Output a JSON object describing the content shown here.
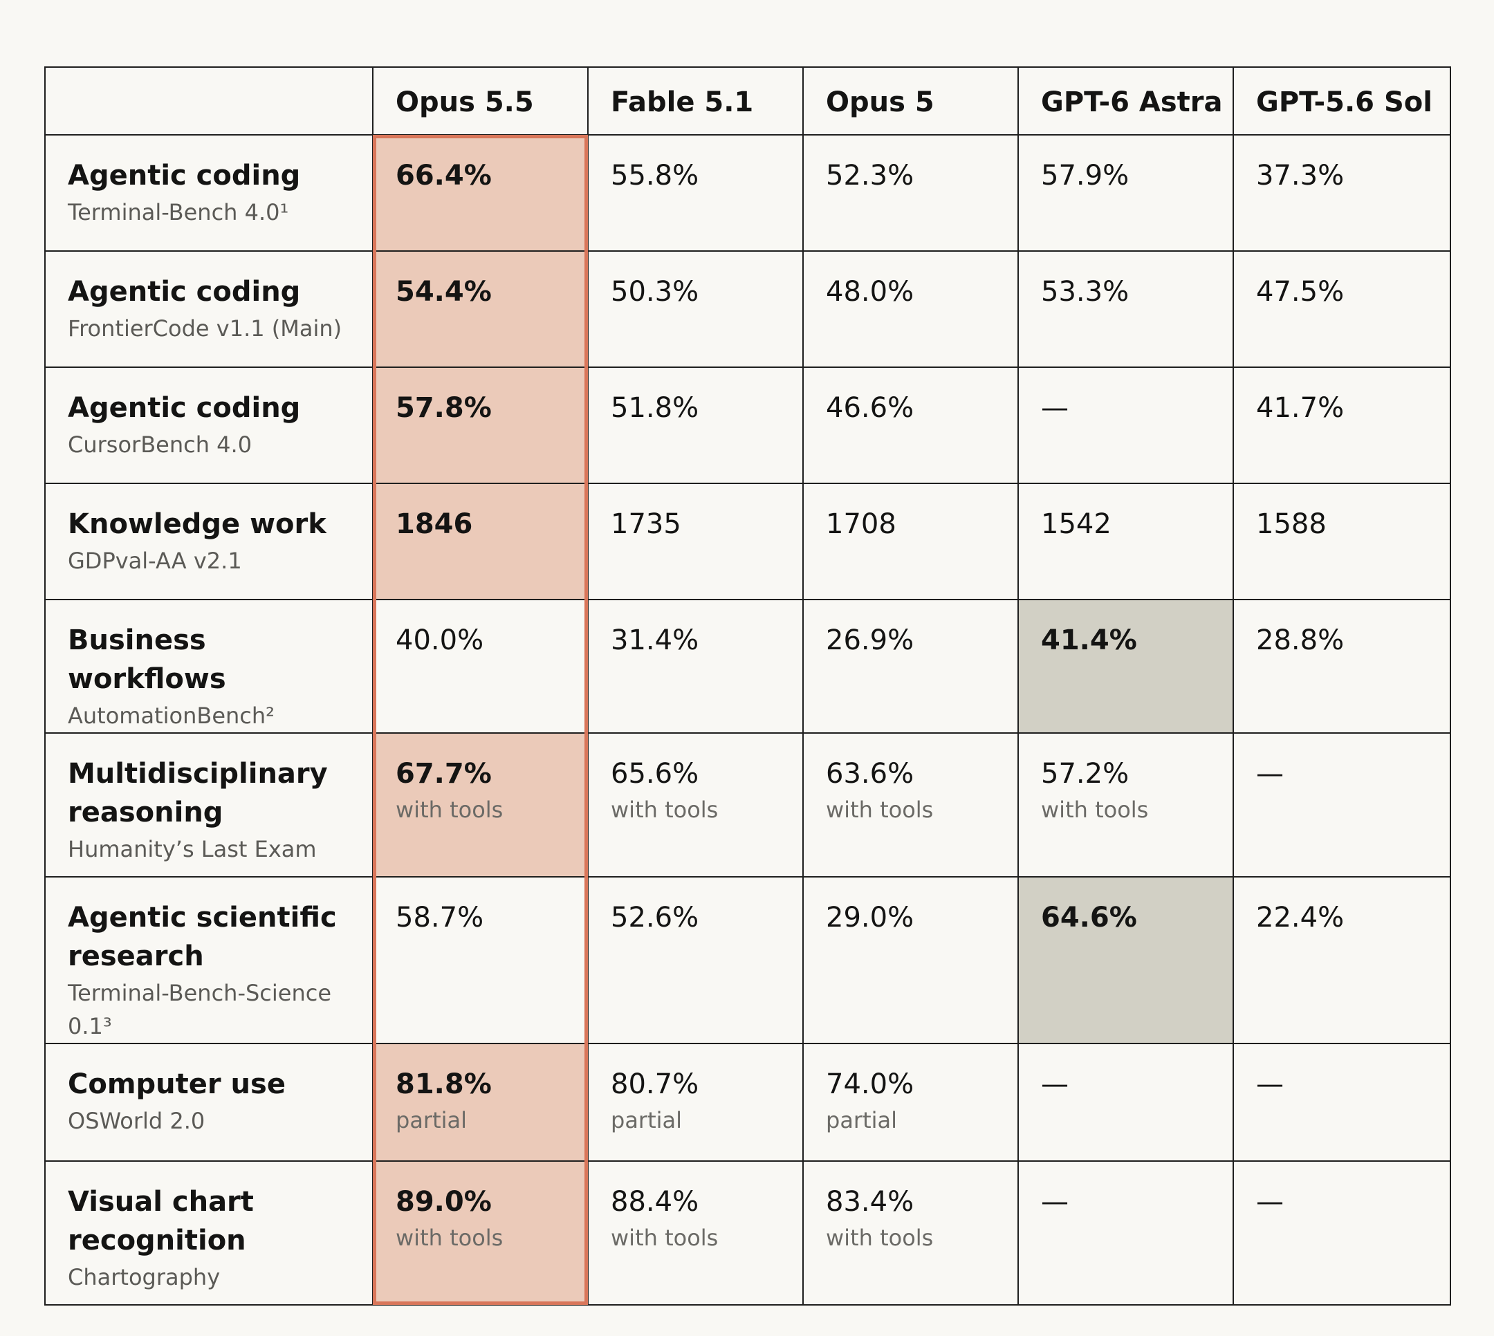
{
  "chart_data": {
    "type": "table",
    "columns": [
      "",
      "Opus 5.5",
      "Fable 5.1",
      "Opus 5",
      "GPT-6 Astra",
      "GPT-5.6 Sol"
    ],
    "accent_colors": {
      "highlight_column_border": "#d9765a",
      "highlight_cell_primary": "#ebcab9",
      "highlight_cell_other": "#d2d0c5"
    },
    "highlighted_column": "Opus 5.5",
    "rows": [
      {
        "category": "Agentic coding",
        "benchmark": "Terminal-Bench 4.0¹",
        "best": 0,
        "cells": [
          {
            "value": "66.4%"
          },
          {
            "value": "55.8%"
          },
          {
            "value": "52.3%"
          },
          {
            "value": "57.9%"
          },
          {
            "value": "37.3%"
          }
        ]
      },
      {
        "category": "Agentic coding",
        "benchmark": "FrontierCode v1.1 (Main)",
        "best": 0,
        "cells": [
          {
            "value": "54.4%"
          },
          {
            "value": "50.3%"
          },
          {
            "value": "48.0%"
          },
          {
            "value": "53.3%"
          },
          {
            "value": "47.5%"
          }
        ]
      },
      {
        "category": "Agentic coding",
        "benchmark": "CursorBench 4.0",
        "best": 0,
        "cells": [
          {
            "value": "57.8%"
          },
          {
            "value": "51.8%"
          },
          {
            "value": "46.6%"
          },
          {
            "value": "—"
          },
          {
            "value": "41.7%"
          }
        ]
      },
      {
        "category": "Knowledge work",
        "benchmark": "GDPval-AA v2.1",
        "best": 0,
        "cells": [
          {
            "value": "1846"
          },
          {
            "value": "1735"
          },
          {
            "value": "1708"
          },
          {
            "value": "1542"
          },
          {
            "value": "1588"
          }
        ]
      },
      {
        "category": "Business workflows",
        "benchmark": "AutomationBench²",
        "best": 3,
        "cells": [
          {
            "value": "40.0%"
          },
          {
            "value": "31.4%"
          },
          {
            "value": "26.9%"
          },
          {
            "value": "41.4%"
          },
          {
            "value": "28.8%"
          }
        ]
      },
      {
        "category": "Multidisciplinary reasoning",
        "benchmark": "Humanity’s Last Exam",
        "best": 0,
        "cells": [
          {
            "value": "67.7%",
            "note": "with tools"
          },
          {
            "value": "65.6%",
            "note": "with tools"
          },
          {
            "value": "63.6%",
            "note": "with tools"
          },
          {
            "value": "57.2%",
            "note": "with tools"
          },
          {
            "value": "—"
          }
        ]
      },
      {
        "category": "Agentic scientific research",
        "benchmark": "Terminal-Bench-Science 0.1³",
        "best": 3,
        "cells": [
          {
            "value": "58.7%"
          },
          {
            "value": "52.6%"
          },
          {
            "value": "29.0%"
          },
          {
            "value": "64.6%"
          },
          {
            "value": "22.4%"
          }
        ]
      },
      {
        "category": "Computer use",
        "benchmark": "OSWorld 2.0",
        "best": 0,
        "cells": [
          {
            "value": "81.8%",
            "note": "partial"
          },
          {
            "value": "80.7%",
            "note": "partial"
          },
          {
            "value": "74.0%",
            "note": "partial"
          },
          {
            "value": "—"
          },
          {
            "value": "—"
          }
        ]
      },
      {
        "category": "Visual chart recognition",
        "benchmark": "Chartography",
        "best": 0,
        "cells": [
          {
            "value": "89.0%",
            "note": "with tools"
          },
          {
            "value": "88.4%",
            "note": "with tools"
          },
          {
            "value": "83.4%",
            "note": "with tools"
          },
          {
            "value": "—"
          },
          {
            "value": "—"
          }
        ]
      }
    ]
  }
}
